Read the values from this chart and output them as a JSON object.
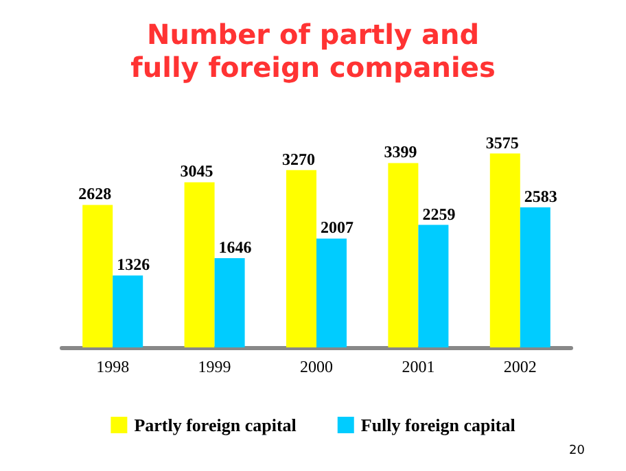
{
  "chart_data": {
    "type": "bar",
    "title": "Number of partly and\nfully foreign companies",
    "categories": [
      "1998",
      "1999",
      "2000",
      "2001",
      "2002"
    ],
    "series": [
      {
        "name": "Partly foreign capital",
        "color": "#ffff00",
        "values": [
          2628,
          3045,
          3270,
          3399,
          3575
        ]
      },
      {
        "name": "Fully foreign capital",
        "color": "#00ccff",
        "values": [
          1326,
          1646,
          2007,
          2259,
          2583
        ]
      }
    ],
    "data_labels": true,
    "legend": "bottom",
    "annotations": [
      "20"
    ]
  }
}
